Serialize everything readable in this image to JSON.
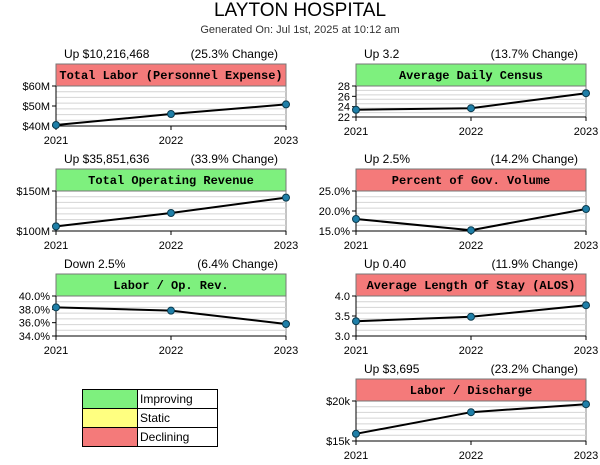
{
  "title": "LAYTON HOSPITAL",
  "subtitle": "Generated On: Jul 1st, 2025 at 10:12 am",
  "colors": {
    "improving": "#7ef07e",
    "static": "#ffff80",
    "declining": "#f47a7a",
    "line": "#000000",
    "point": "#1f7fa8"
  },
  "legend": [
    {
      "label": "Improving",
      "status": "improving"
    },
    {
      "label": "Static",
      "status": "static"
    },
    {
      "label": "Declining",
      "status": "declining"
    }
  ],
  "chart_data": [
    {
      "type": "line",
      "title": "Total Labor (Personnel Expense)",
      "status": "declining",
      "summary": "Up $10,216,468",
      "change": "(25.3% Change)",
      "x": [
        "2021",
        "2022",
        "2023"
      ],
      "values": [
        40.5,
        46.0,
        50.8
      ],
      "ylim": [
        40,
        60
      ],
      "yticks": [
        40,
        50,
        60
      ],
      "ytick_labels": [
        "$40M",
        "$50M",
        "$60M"
      ]
    },
    {
      "type": "line",
      "title": "Average Daily Census",
      "status": "improving",
      "summary": "Up 3.2",
      "change": "(13.7% Change)",
      "x": [
        "2021",
        "2022",
        "2023"
      ],
      "values": [
        23.4,
        23.7,
        26.6
      ],
      "ylim": [
        22,
        28
      ],
      "yticks": [
        22,
        24,
        26,
        28
      ],
      "ytick_labels": [
        "22",
        "24",
        "26",
        "28"
      ]
    },
    {
      "type": "line",
      "title": "Total Operating Revenue",
      "status": "improving",
      "summary": "Up $35,851,636",
      "change": "(33.9% Change)",
      "x": [
        "2021",
        "2022",
        "2023"
      ],
      "values": [
        105.8,
        122.5,
        141.7
      ],
      "ylim": [
        100,
        150
      ],
      "yticks": [
        100,
        150
      ],
      "ytick_labels": [
        "$100M",
        "$150M"
      ]
    },
    {
      "type": "line",
      "title": "Percent of Gov. Volume",
      "status": "declining",
      "summary": "Up 2.5%",
      "change": "(14.2% Change)",
      "x": [
        "2021",
        "2022",
        "2023"
      ],
      "values": [
        18.0,
        15.2,
        20.5
      ],
      "ylim": [
        15,
        25
      ],
      "yticks": [
        15,
        20,
        25
      ],
      "ytick_labels": [
        "15.0%",
        "20.0%",
        "25.0%"
      ]
    },
    {
      "type": "line",
      "title": "Labor / Op. Rev.",
      "status": "improving",
      "summary": "Down 2.5%",
      "change": "(6.4% Change)",
      "x": [
        "2021",
        "2022",
        "2023"
      ],
      "values": [
        38.3,
        37.8,
        35.8
      ],
      "ylim": [
        34,
        40
      ],
      "yticks": [
        34,
        36,
        38,
        40
      ],
      "ytick_labels": [
        "34.0%",
        "36.0%",
        "38.0%",
        "40.0%"
      ]
    },
    {
      "type": "line",
      "title": "Average Length Of Stay (ALOS)",
      "status": "declining",
      "summary": "Up 0.40",
      "change": "(11.9% Change)",
      "x": [
        "2021",
        "2022",
        "2023"
      ],
      "values": [
        3.37,
        3.48,
        3.77
      ],
      "ylim": [
        3.0,
        4.0
      ],
      "yticks": [
        3.0,
        3.5,
        4.0
      ],
      "ytick_labels": [
        "3.0",
        "3.5",
        "4.0"
      ]
    },
    {
      "type": "line",
      "title": "Labor / Discharge",
      "status": "declining",
      "summary": "Up $3,695",
      "change": "(23.2% Change)",
      "x": [
        "2021",
        "2022",
        "2023"
      ],
      "values": [
        15.9,
        18.6,
        19.6
      ],
      "ylim": [
        15,
        20
      ],
      "yticks": [
        15,
        20
      ],
      "ytick_labels": [
        "$15k",
        "$20k"
      ]
    }
  ]
}
